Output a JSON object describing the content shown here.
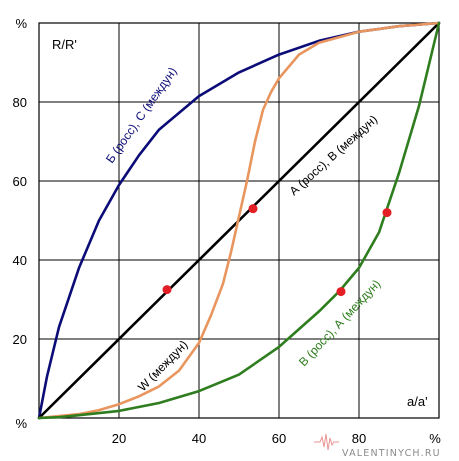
{
  "chart_data": {
    "type": "line",
    "corner_label": "R/R'",
    "xlabel": "a/a'",
    "xlim": [
      0,
      100
    ],
    "ylim": [
      0,
      100
    ],
    "x_ticks": [
      "20",
      "40",
      "60",
      "80"
    ],
    "y_ticks": [
      "20",
      "40",
      "60",
      "80"
    ],
    "x_end_label": "%",
    "y_end_label": "%",
    "origin_label": "%",
    "grid": true,
    "series": [
      {
        "name": "Б (росс), С (междун)",
        "color": "#0c0c78",
        "x": [
          0,
          2,
          5,
          10,
          15,
          20,
          25,
          30,
          40,
          50,
          60,
          70,
          80,
          90,
          100
        ],
        "y": [
          0,
          10.5,
          23,
          38,
          50,
          59,
          66.5,
          73,
          81.5,
          87.5,
          92,
          95.5,
          97.8,
          99.2,
          100
        ]
      },
      {
        "name": "А (росс), В (междун)",
        "color": "#000000",
        "x": [
          0,
          100
        ],
        "y": [
          0,
          100
        ]
      },
      {
        "name": "W (междун)",
        "color": "#e8955e",
        "x": [
          0,
          5,
          10,
          15,
          20,
          25,
          30,
          35,
          40,
          43,
          46,
          48,
          50,
          52,
          54,
          56,
          58,
          60,
          65,
          70,
          80,
          90,
          100
        ],
        "y": [
          0,
          0.5,
          1,
          2,
          3.5,
          5.5,
          8,
          12,
          19,
          26,
          34,
          42,
          51,
          60,
          70,
          78,
          82.5,
          86,
          92,
          95,
          97.8,
          99.2,
          100
        ]
      },
      {
        "name": "В (росс), А (междун)",
        "color": "#2e7d1e",
        "x": [
          0,
          5,
          10,
          20,
          30,
          40,
          50,
          60,
          70,
          75,
          80,
          85,
          90,
          95,
          100
        ],
        "y": [
          0,
          0.2,
          0.7,
          1.8,
          3.8,
          6.8,
          11,
          18,
          27,
          32,
          38,
          47,
          62,
          79,
          100
        ]
      }
    ],
    "points": [
      {
        "x": 32,
        "y": 32.5,
        "color": "#e31e24"
      },
      {
        "x": 53.5,
        "y": 53,
        "color": "#e31e24"
      },
      {
        "x": 75.5,
        "y": 32,
        "color": "#e31e24"
      },
      {
        "x": 87,
        "y": 52,
        "color": "#e31e24"
      }
    ],
    "watermark": "VALENTINYCH.RU"
  }
}
